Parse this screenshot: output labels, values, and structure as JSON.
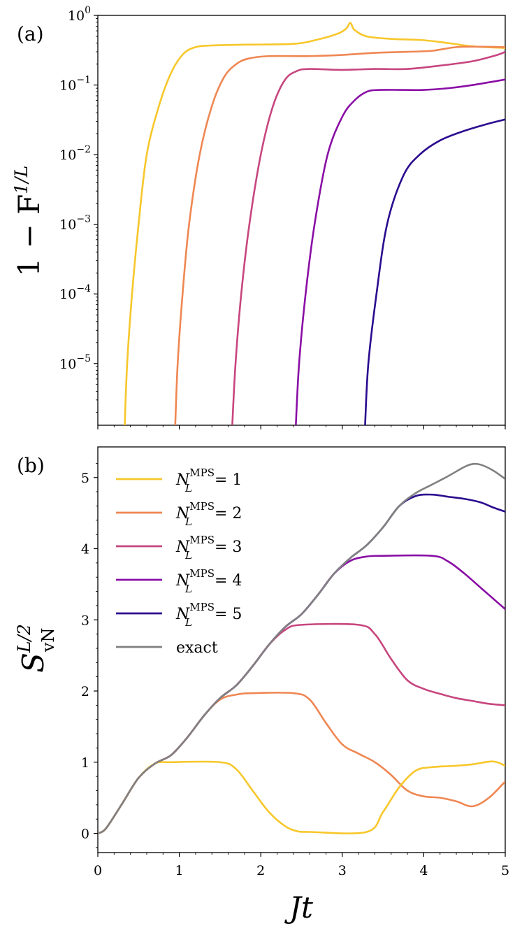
{
  "chart_data": [
    {
      "panel_label": "(a)",
      "type": "line",
      "yscale": "log",
      "ylabel": "1 − F",
      "ylabel_sup": "1/L",
      "xlim": [
        0,
        5
      ],
      "ylim": [
        1.3e-06,
        1.0
      ],
      "ytick_base": "10",
      "yticks": [
        {
          "value": 1,
          "exp": "0"
        },
        {
          "value": 0.1,
          "exp": "−1"
        },
        {
          "value": 0.01,
          "exp": "−2"
        },
        {
          "value": 0.001,
          "exp": "−3"
        },
        {
          "value": 0.0001,
          "exp": "−4"
        },
        {
          "value": 1e-05,
          "exp": "−5"
        }
      ],
      "series": [
        {
          "name": "N_L^MPS = 1",
          "color": "#f7c72b",
          "points": [
            [
              0.33,
              1.3e-06
            ],
            [
              0.36,
              1e-05
            ],
            [
              0.42,
              0.0001
            ],
            [
              0.5,
              0.001
            ],
            [
              0.6,
              0.01
            ],
            [
              0.75,
              0.05
            ],
            [
              0.9,
              0.15
            ],
            [
              1.05,
              0.28
            ],
            [
              1.2,
              0.35
            ],
            [
              1.4,
              0.37
            ],
            [
              1.8,
              0.38
            ],
            [
              2.4,
              0.39
            ],
            [
              2.7,
              0.45
            ],
            [
              2.95,
              0.55
            ],
            [
              3.05,
              0.65
            ],
            [
              3.1,
              0.78
            ],
            [
              3.15,
              0.62
            ],
            [
              3.3,
              0.5
            ],
            [
              3.6,
              0.46
            ],
            [
              4.0,
              0.44
            ],
            [
              4.3,
              0.4
            ],
            [
              4.6,
              0.36
            ],
            [
              5.0,
              0.34
            ]
          ]
        },
        {
          "name": "N_L^MPS = 2",
          "color": "#ef8753",
          "points": [
            [
              0.95,
              1.3e-06
            ],
            [
              0.98,
              1e-05
            ],
            [
              1.04,
              0.0001
            ],
            [
              1.12,
              0.001
            ],
            [
              1.25,
              0.01
            ],
            [
              1.4,
              0.05
            ],
            [
              1.55,
              0.13
            ],
            [
              1.7,
              0.2
            ],
            [
              1.85,
              0.24
            ],
            [
              2.1,
              0.26
            ],
            [
              2.6,
              0.26
            ],
            [
              3.0,
              0.27
            ],
            [
              3.4,
              0.29
            ],
            [
              3.8,
              0.3
            ],
            [
              4.1,
              0.31
            ],
            [
              4.4,
              0.35
            ],
            [
              4.7,
              0.355
            ],
            [
              5.0,
              0.35
            ]
          ]
        },
        {
          "name": "N_L^MPS = 3",
          "color": "#c7467f",
          "points": [
            [
              1.65,
              1.3e-06
            ],
            [
              1.69,
              1e-05
            ],
            [
              1.76,
              0.0001
            ],
            [
              1.86,
              0.001
            ],
            [
              2.0,
              0.01
            ],
            [
              2.15,
              0.05
            ],
            [
              2.3,
              0.12
            ],
            [
              2.45,
              0.16
            ],
            [
              2.6,
              0.17
            ],
            [
              3.0,
              0.165
            ],
            [
              3.4,
              0.17
            ],
            [
              3.8,
              0.17
            ],
            [
              4.2,
              0.19
            ],
            [
              4.6,
              0.22
            ],
            [
              4.9,
              0.27
            ],
            [
              5.0,
              0.3
            ]
          ]
        },
        {
          "name": "N_L^MPS = 4",
          "color": "#8a0ea5",
          "points": [
            [
              2.43,
              1.3e-06
            ],
            [
              2.47,
              1e-05
            ],
            [
              2.55,
              0.0001
            ],
            [
              2.66,
              0.001
            ],
            [
              2.82,
              0.01
            ],
            [
              3.0,
              0.035
            ],
            [
              3.15,
              0.06
            ],
            [
              3.3,
              0.08
            ],
            [
              3.45,
              0.085
            ],
            [
              3.75,
              0.085
            ],
            [
              4.0,
              0.085
            ],
            [
              4.3,
              0.09
            ],
            [
              4.6,
              0.1
            ],
            [
              5.0,
              0.12
            ]
          ]
        },
        {
          "name": "N_L^MPS = 5",
          "color": "#2b0b8f",
          "points": [
            [
              3.28,
              1.3e-06
            ],
            [
              3.32,
              1e-05
            ],
            [
              3.42,
              0.0001
            ],
            [
              3.55,
              0.001
            ],
            [
              3.75,
              0.005
            ],
            [
              3.95,
              0.01
            ],
            [
              4.2,
              0.016
            ],
            [
              4.5,
              0.022
            ],
            [
              4.8,
              0.028
            ],
            [
              5.0,
              0.032
            ]
          ]
        }
      ]
    },
    {
      "panel_label": "(b)",
      "type": "line",
      "yscale": "linear",
      "xlabel": "Jt",
      "ylabel_main": "S",
      "ylabel_sup": "L/2",
      "ylabel_sub": "vN",
      "xlim": [
        0,
        5
      ],
      "ylim": [
        -0.27,
        5.43
      ],
      "xticks": [
        0,
        1,
        2,
        3,
        4,
        5
      ],
      "yticks": [
        0,
        1,
        2,
        3,
        4,
        5
      ],
      "legend_location": "upper-left",
      "series": [
        {
          "name": "N_L^MPS = 1",
          "legend_main": "N",
          "legend_sup": "MPS",
          "legend_sub": "L",
          "legend_rest": "= 1",
          "color": "#f7c72b",
          "points": [
            [
              0,
              0
            ],
            [
              0.1,
              0.07
            ],
            [
              0.3,
              0.42
            ],
            [
              0.5,
              0.78
            ],
            [
              0.7,
              0.98
            ],
            [
              0.9,
              1.0
            ],
            [
              1.5,
              1.0
            ],
            [
              1.7,
              0.9
            ],
            [
              1.9,
              0.6
            ],
            [
              2.1,
              0.3
            ],
            [
              2.3,
              0.1
            ],
            [
              2.45,
              0.03
            ],
            [
              2.6,
              0.02
            ],
            [
              3.3,
              0.02
            ],
            [
              3.5,
              0.3
            ],
            [
              3.7,
              0.65
            ],
            [
              3.9,
              0.88
            ],
            [
              4.1,
              0.93
            ],
            [
              4.4,
              0.95
            ],
            [
              4.6,
              0.97
            ],
            [
              4.85,
              1.01
            ],
            [
              5.0,
              0.95
            ]
          ]
        },
        {
          "name": "N_L^MPS = 2",
          "legend_main": "N",
          "legend_sup": "MPS",
          "legend_sub": "L",
          "legend_rest": "= 2",
          "color": "#ef8753",
          "points": [
            [
              0,
              0
            ],
            [
              0.1,
              0.07
            ],
            [
              0.3,
              0.42
            ],
            [
              0.5,
              0.78
            ],
            [
              0.7,
              0.98
            ],
            [
              0.9,
              1.1
            ],
            [
              1.1,
              1.35
            ],
            [
              1.3,
              1.65
            ],
            [
              1.5,
              1.88
            ],
            [
              1.7,
              1.95
            ],
            [
              1.9,
              1.97
            ],
            [
              2.4,
              1.97
            ],
            [
              2.6,
              1.88
            ],
            [
              2.8,
              1.55
            ],
            [
              3.0,
              1.25
            ],
            [
              3.2,
              1.12
            ],
            [
              3.4,
              1.0
            ],
            [
              3.6,
              0.82
            ],
            [
              3.8,
              0.6
            ],
            [
              4.0,
              0.52
            ],
            [
              4.2,
              0.5
            ],
            [
              4.4,
              0.45
            ],
            [
              4.6,
              0.38
            ],
            [
              4.8,
              0.5
            ],
            [
              5.0,
              0.73
            ]
          ]
        },
        {
          "name": "N_L^MPS = 3",
          "legend_main": "N",
          "legend_sup": "MPS",
          "legend_sub": "L",
          "legend_rest": "= 3",
          "color": "#c7467f",
          "points": [
            [
              0,
              0
            ],
            [
              0.1,
              0.07
            ],
            [
              0.3,
              0.42
            ],
            [
              0.5,
              0.78
            ],
            [
              0.7,
              0.98
            ],
            [
              0.9,
              1.1
            ],
            [
              1.1,
              1.35
            ],
            [
              1.3,
              1.65
            ],
            [
              1.5,
              1.9
            ],
            [
              1.7,
              2.08
            ],
            [
              1.9,
              2.35
            ],
            [
              2.1,
              2.65
            ],
            [
              2.3,
              2.86
            ],
            [
              2.5,
              2.93
            ],
            [
              3.2,
              2.93
            ],
            [
              3.4,
              2.8
            ],
            [
              3.6,
              2.45
            ],
            [
              3.8,
              2.15
            ],
            [
              4.0,
              2.03
            ],
            [
              4.2,
              1.96
            ],
            [
              4.4,
              1.9
            ],
            [
              4.6,
              1.86
            ],
            [
              4.8,
              1.82
            ],
            [
              5.0,
              1.8
            ]
          ]
        },
        {
          "name": "N_L^MPS = 4",
          "legend_main": "N",
          "legend_sup": "MPS",
          "legend_sub": "L",
          "legend_rest": "= 4",
          "color": "#8a0ea5",
          "points": [
            [
              0,
              0
            ],
            [
              0.1,
              0.07
            ],
            [
              0.3,
              0.42
            ],
            [
              0.5,
              0.78
            ],
            [
              0.7,
              0.98
            ],
            [
              0.9,
              1.1
            ],
            [
              1.1,
              1.35
            ],
            [
              1.3,
              1.65
            ],
            [
              1.5,
              1.9
            ],
            [
              1.7,
              2.08
            ],
            [
              1.9,
              2.35
            ],
            [
              2.1,
              2.65
            ],
            [
              2.3,
              2.9
            ],
            [
              2.5,
              3.08
            ],
            [
              2.7,
              3.35
            ],
            [
              2.9,
              3.65
            ],
            [
              3.1,
              3.83
            ],
            [
              3.3,
              3.89
            ],
            [
              3.5,
              3.9
            ],
            [
              4.1,
              3.9
            ],
            [
              4.3,
              3.82
            ],
            [
              4.5,
              3.65
            ],
            [
              4.7,
              3.45
            ],
            [
              4.9,
              3.25
            ],
            [
              5.0,
              3.15
            ]
          ]
        },
        {
          "name": "N_L^MPS = 5",
          "legend_main": "N",
          "legend_sup": "MPS",
          "legend_sub": "L",
          "legend_rest": "= 5",
          "color": "#2b0b8f",
          "points": [
            [
              0,
              0
            ],
            [
              0.1,
              0.07
            ],
            [
              0.3,
              0.42
            ],
            [
              0.5,
              0.78
            ],
            [
              0.7,
              0.98
            ],
            [
              0.9,
              1.1
            ],
            [
              1.1,
              1.35
            ],
            [
              1.3,
              1.65
            ],
            [
              1.5,
              1.9
            ],
            [
              1.7,
              2.08
            ],
            [
              1.9,
              2.35
            ],
            [
              2.1,
              2.65
            ],
            [
              2.3,
              2.9
            ],
            [
              2.5,
              3.08
            ],
            [
              2.7,
              3.35
            ],
            [
              2.9,
              3.65
            ],
            [
              3.1,
              3.87
            ],
            [
              3.3,
              4.05
            ],
            [
              3.5,
              4.3
            ],
            [
              3.7,
              4.6
            ],
            [
              3.9,
              4.74
            ],
            [
              4.1,
              4.76
            ],
            [
              4.3,
              4.73
            ],
            [
              4.5,
              4.7
            ],
            [
              4.7,
              4.65
            ],
            [
              4.85,
              4.58
            ],
            [
              5.0,
              4.52
            ]
          ]
        },
        {
          "name": "exact",
          "legend_main": "exact",
          "legend_sup": "",
          "legend_sub": "",
          "legend_rest": "",
          "color": "#808080",
          "points": [
            [
              0,
              0
            ],
            [
              0.1,
              0.07
            ],
            [
              0.3,
              0.42
            ],
            [
              0.5,
              0.78
            ],
            [
              0.7,
              0.98
            ],
            [
              0.9,
              1.1
            ],
            [
              1.1,
              1.35
            ],
            [
              1.3,
              1.65
            ],
            [
              1.5,
              1.9
            ],
            [
              1.7,
              2.08
            ],
            [
              1.9,
              2.35
            ],
            [
              2.1,
              2.65
            ],
            [
              2.3,
              2.9
            ],
            [
              2.5,
              3.08
            ],
            [
              2.7,
              3.35
            ],
            [
              2.9,
              3.65
            ],
            [
              3.1,
              3.87
            ],
            [
              3.3,
              4.05
            ],
            [
              3.5,
              4.3
            ],
            [
              3.7,
              4.6
            ],
            [
              3.9,
              4.78
            ],
            [
              4.1,
              4.9
            ],
            [
              4.3,
              5.02
            ],
            [
              4.5,
              5.15
            ],
            [
              4.6,
              5.19
            ],
            [
              4.7,
              5.18
            ],
            [
              4.85,
              5.1
            ],
            [
              5.0,
              4.98
            ]
          ]
        }
      ]
    }
  ]
}
